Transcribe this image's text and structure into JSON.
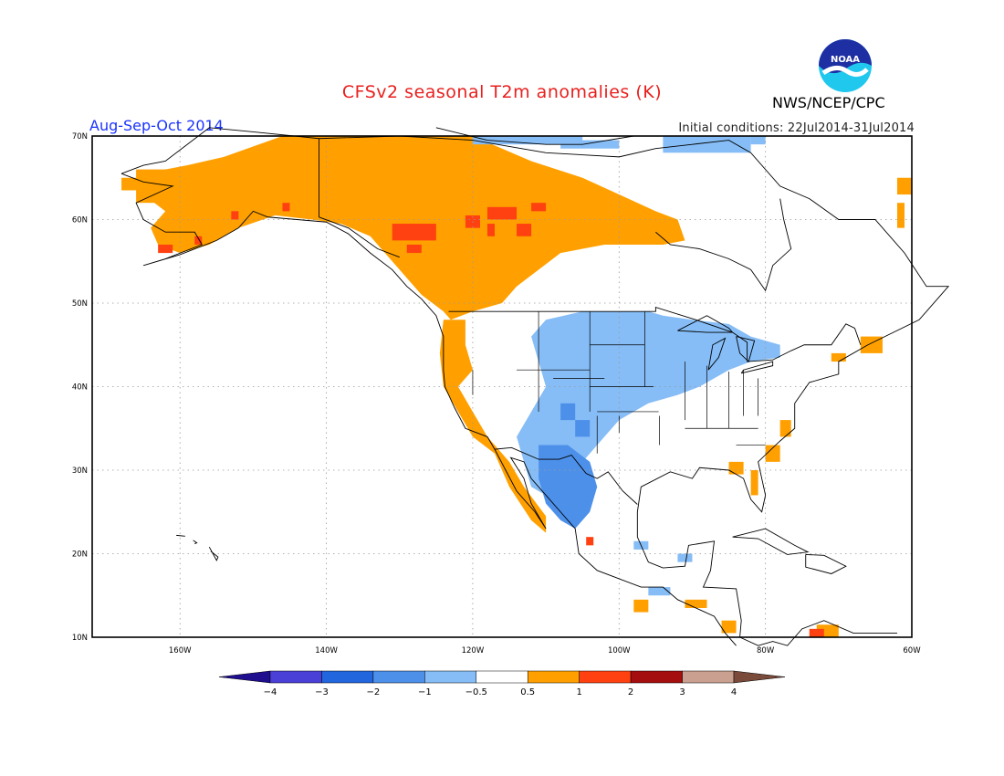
{
  "header": {
    "title": "CFSv2 seasonal T2m anomalies (K)",
    "season": "Aug-Sep-Oct 2014",
    "initial_conditions": "Initial conditions: 22Jul2014-31Jul2014",
    "organization": "NWS/NCEP/CPC",
    "logo_text": "NOAA"
  },
  "map": {
    "projection": "lat-lon",
    "lon_range": [
      -172,
      -60
    ],
    "lat_range": [
      10,
      70
    ],
    "lon_ticks": [
      "160W",
      "140W",
      "120W",
      "100W",
      "80W",
      "60W"
    ],
    "lat_ticks": [
      "70N",
      "60N",
      "50N",
      "40N",
      "30N",
      "20N",
      "10N"
    ],
    "gridlines": "dotted"
  },
  "colorbar": {
    "tick_labels": [
      "-4",
      "-3",
      "-2",
      "-1",
      "-0.5",
      "0.5",
      "1",
      "2",
      "3",
      "4"
    ],
    "colors": [
      "#1f0f8f",
      "#4a3fd6",
      "#2266dd",
      "#4d90ea",
      "#86bdf6",
      "#ffffff",
      "#ffa000",
      "#ff4010",
      "#a40e0e",
      "#caa090",
      "#7a4a3a"
    ]
  }
}
